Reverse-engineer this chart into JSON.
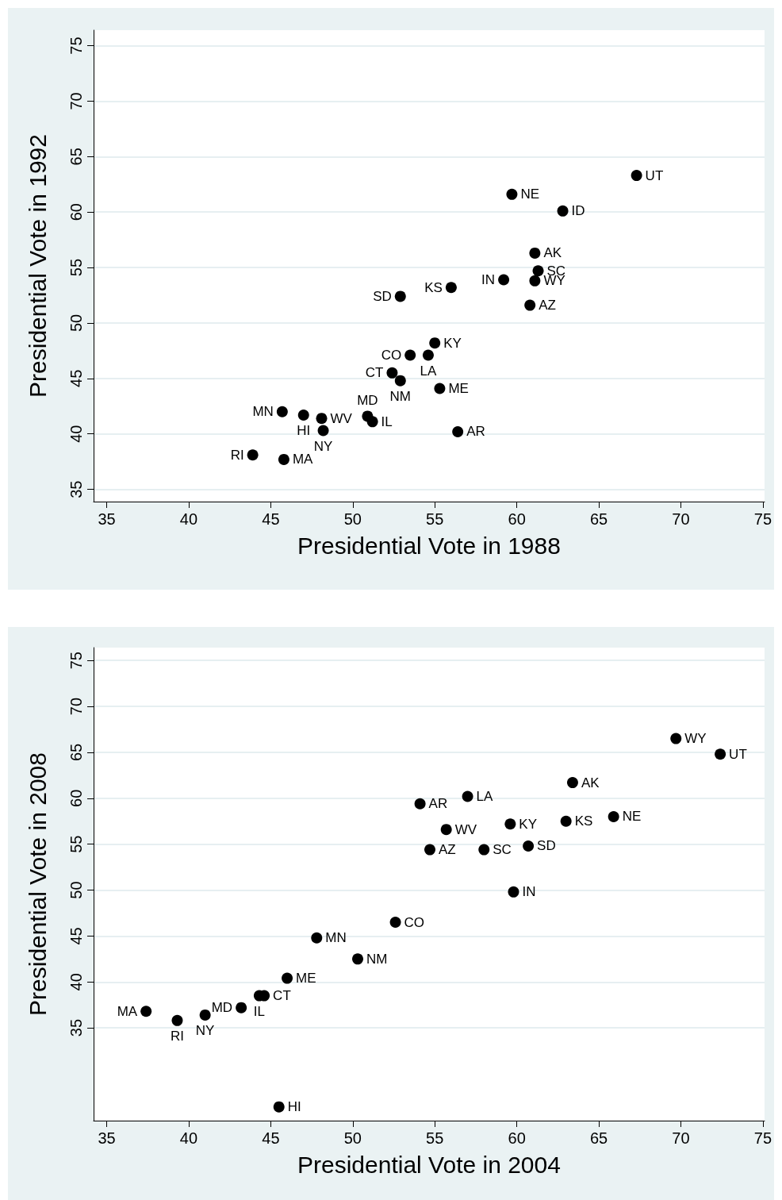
{
  "chart_data": [
    {
      "type": "scatter",
      "xlabel": "Presidential Vote in 1988",
      "ylabel": "Presidential Vote in 1992",
      "x": [
        67.3,
        59.7,
        62.8,
        61.1,
        61.3,
        61.1,
        59.2,
        60.8,
        56.0,
        52.9,
        55.0,
        53.5,
        54.6,
        52.4,
        52.9,
        55.3,
        45.7,
        47.0,
        48.1,
        48.2,
        50.9,
        51.2,
        56.4,
        43.9,
        45.8
      ],
      "values": [
        63.3,
        61.6,
        60.1,
        56.3,
        54.7,
        53.8,
        53.9,
        51.6,
        53.2,
        52.4,
        48.2,
        47.1,
        47.1,
        45.5,
        44.8,
        44.1,
        42.0,
        41.7,
        41.4,
        40.3,
        41.6,
        41.1,
        40.2,
        38.1,
        37.7
      ],
      "value_labels": [
        "UT",
        "NE",
        "ID",
        "AK",
        "SC",
        "WY",
        "IN",
        "AZ",
        "KS",
        "SD",
        "KY",
        "CO",
        "LA",
        "CT",
        "NM",
        "ME",
        "MN",
        "HI",
        "WV",
        "NY",
        "MD",
        "IL",
        "AR",
        "RI",
        "MA"
      ],
      "color": "#000000",
      "marker": "circle",
      "xlim": [
        34.2,
        75.1
      ],
      "xticks": [
        35,
        40,
        45,
        50,
        55,
        60,
        65,
        70,
        75
      ],
      "ylim": [
        33.9,
        76.4
      ],
      "yticks": [
        35,
        40,
        45,
        50,
        55,
        60,
        65,
        70,
        75
      ],
      "grid": "y"
    },
    {
      "type": "scatter",
      "xlabel": "Presidential Vote in 2004",
      "ylabel": "Presidential Vote in 2008",
      "x": [
        69.7,
        72.4,
        63.4,
        65.9,
        63.0,
        59.6,
        57.0,
        54.1,
        55.7,
        54.7,
        58.0,
        60.7,
        59.8,
        52.6,
        47.8,
        50.3,
        46.0,
        44.3,
        44.6,
        43.2,
        41.0,
        39.3,
        37.4,
        45.5
      ],
      "values": [
        66.5,
        64.8,
        61.7,
        58.0,
        57.5,
        57.2,
        60.2,
        59.4,
        56.6,
        54.4,
        54.4,
        54.8,
        49.8,
        46.5,
        44.8,
        42.5,
        40.4,
        38.5,
        38.5,
        37.2,
        36.4,
        35.8,
        36.8,
        26.4
      ],
      "value_labels": [
        "WY",
        "UT",
        "AK",
        "NE",
        "KS",
        "KY",
        "LA",
        "AR",
        "WV",
        "AZ",
        "SC",
        "SD",
        "IN",
        "CO",
        "MN",
        "NM",
        "ME",
        "IL",
        "CT",
        "MD",
        "NY",
        "RI",
        "MA",
        "HI"
      ],
      "color": "#000000",
      "marker": "circle",
      "xlim": [
        34.2,
        75.1
      ],
      "xticks": [
        35,
        40,
        45,
        50,
        55,
        60,
        65,
        70,
        75
      ],
      "ylim": [
        24.9,
        76.4
      ],
      "yticks": [
        35,
        40,
        45,
        50,
        55,
        60,
        65,
        70,
        75
      ],
      "grid": "y"
    }
  ]
}
